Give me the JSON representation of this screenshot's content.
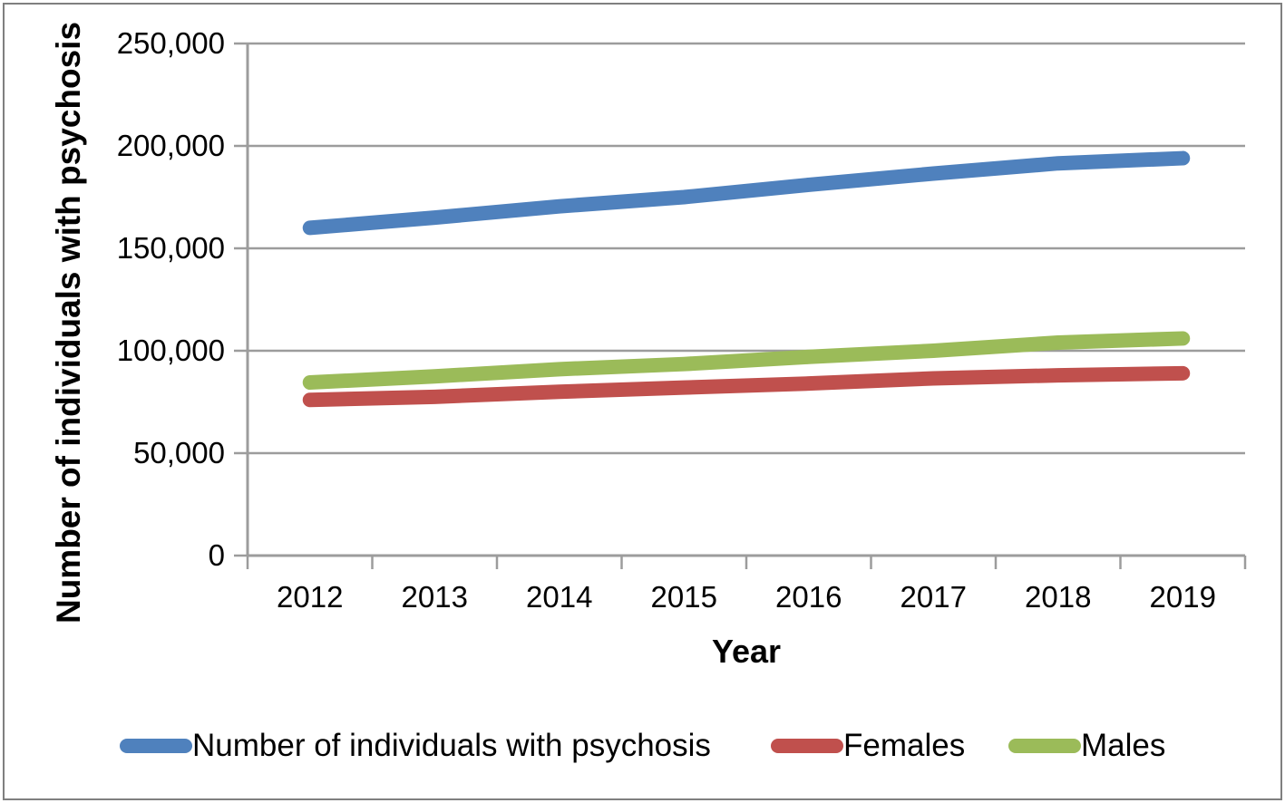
{
  "chart_data": {
    "type": "line",
    "title": "",
    "xlabel": "Year",
    "ylabel": "Number of individuals with psychosis",
    "categories": [
      "2012",
      "2013",
      "2014",
      "2015",
      "2016",
      "2017",
      "2018",
      "2019"
    ],
    "series": [
      {
        "name": "Number of individuals with psychosis",
        "color": "#4F81BD",
        "values": [
          160000,
          165000,
          170500,
          175000,
          181000,
          186500,
          191500,
          194000
        ]
      },
      {
        "name": "Females",
        "color": "#C0504D",
        "values": [
          76000,
          77500,
          80000,
          82000,
          84000,
          86500,
          88000,
          89000
        ]
      },
      {
        "name": "Males",
        "color": "#9BBB59",
        "values": [
          84500,
          87500,
          91000,
          93500,
          97000,
          100000,
          104000,
          106000
        ]
      }
    ],
    "ylim": [
      0,
      250000
    ],
    "ytick_labels": [
      "0",
      "50,000",
      "100,000",
      "150,000",
      "200,000",
      "250,000"
    ],
    "grid": true,
    "legend_position": "bottom",
    "gridline_color": "#9C9C9C",
    "axis_color": "#9C9C9C",
    "border_color": "#7F7F7F"
  }
}
